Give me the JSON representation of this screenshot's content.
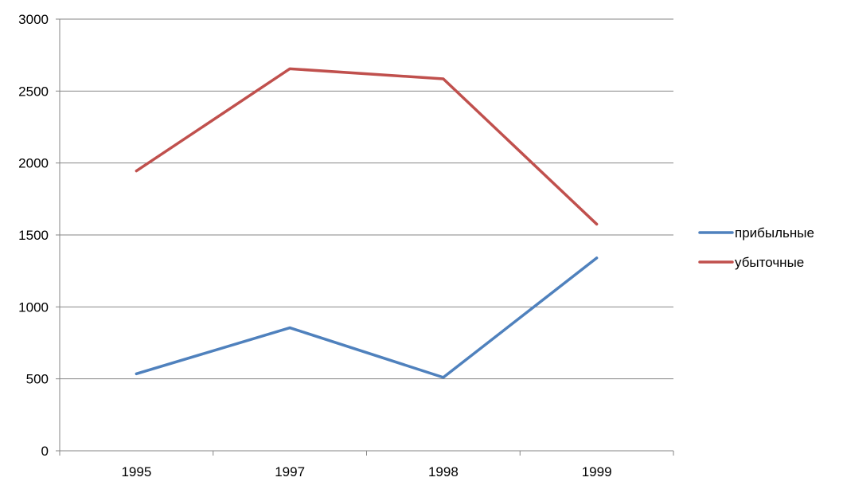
{
  "chart_data": {
    "type": "line",
    "title": "",
    "xlabel": "",
    "ylabel": "",
    "categories": [
      "1995",
      "1997",
      "1998",
      "1999"
    ],
    "ylim": [
      0,
      3000
    ],
    "yticks": [
      0,
      500,
      1000,
      1500,
      2000,
      2500,
      3000
    ],
    "grid": true,
    "legend": "right",
    "series": [
      {
        "name": "прибыльные",
        "color": "#4F81BD",
        "values": [
          535,
          855,
          510,
          1340
        ]
      },
      {
        "name": "убыточные",
        "color": "#C0504D",
        "values": [
          1945,
          2655,
          2585,
          1575
        ]
      }
    ]
  }
}
